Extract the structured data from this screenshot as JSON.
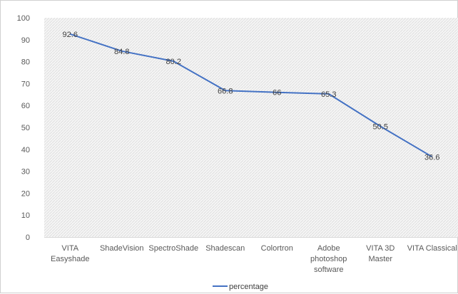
{
  "chart_data": {
    "type": "line",
    "title": "",
    "xlabel": "",
    "ylabel": "",
    "categories": [
      [
        "VITA",
        "Easyshade"
      ],
      [
        "ShadeVision"
      ],
      [
        "SpectroShade"
      ],
      [
        "Shadescan"
      ],
      [
        "Colortron"
      ],
      [
        "Adobe",
        "photoshop",
        "software"
      ],
      [
        "VITA 3D",
        "Master"
      ],
      [
        "VITA Classical"
      ]
    ],
    "series": [
      {
        "name": "percentage",
        "values": [
          92.6,
          84.8,
          80.2,
          66.8,
          66,
          65.3,
          50.5,
          36.6
        ],
        "data_labels": [
          "92.6",
          "84.8",
          "80.2",
          "66.8",
          "66",
          "65.3",
          "50.5",
          "36.6"
        ],
        "color": "#4472c4"
      }
    ],
    "ylim": [
      0,
      100
    ],
    "yticks": [
      "0",
      "10",
      "20",
      "30",
      "40",
      "50",
      "60",
      "70",
      "80",
      "90",
      "100"
    ],
    "grid": false,
    "plot_area_pattern": "diagonal-hatch",
    "legend": {
      "position": "bottom",
      "entries": [
        "percentage"
      ]
    }
  }
}
